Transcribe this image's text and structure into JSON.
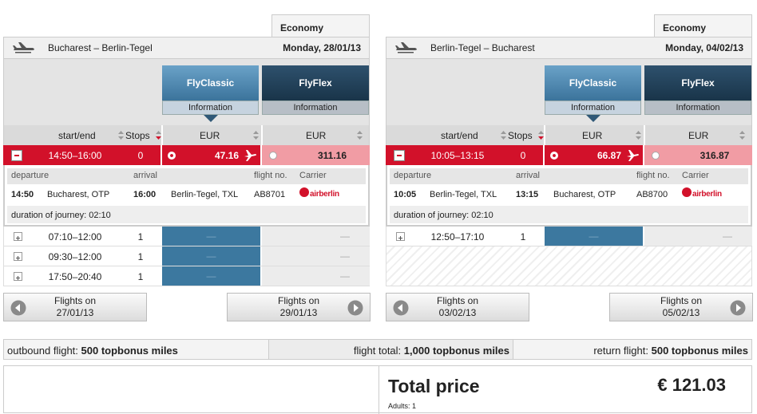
{
  "panels": [
    {
      "tab": "Economy",
      "route": "Bucharest – Berlin-Tegel",
      "date": "Monday, 28/01/13",
      "fares": [
        {
          "name": "FlyClassic",
          "info": "Information"
        },
        {
          "name": "FlyFlex",
          "info": "Information"
        }
      ],
      "columns": [
        "start/end",
        "Stops",
        "EUR",
        "EUR"
      ],
      "selected": {
        "time": "14:50–16:00",
        "stops": "0",
        "prices": [
          "47.16",
          "311.16"
        ]
      },
      "detail": {
        "headers": [
          "departure",
          "arrival",
          "flight no.",
          "Carrier"
        ],
        "dep_time": "14:50",
        "dep_place": "Bucharest, OTP",
        "arr_time": "16:00",
        "arr_place": "Berlin-Tegel, TXL",
        "flight_no": "AB8701",
        "carrier": "airberlin",
        "duration": "duration of journey: 02:10"
      },
      "flights": [
        {
          "time": "07:10–12:00",
          "stops": "1",
          "prices": [
            "—",
            "—"
          ]
        },
        {
          "time": "09:30–12:00",
          "stops": "1",
          "prices": [
            "—",
            "—"
          ]
        },
        {
          "time": "17:50–20:40",
          "stops": "1",
          "prices": [
            "—",
            "—"
          ]
        }
      ],
      "prev": {
        "label": "Flights on",
        "date": "27/01/13"
      },
      "next": {
        "label": "Flights on",
        "date": "29/01/13"
      }
    },
    {
      "tab": "Economy",
      "route": "Berlin-Tegel – Bucharest",
      "date": "Monday, 04/02/13",
      "fares": [
        {
          "name": "FlyClassic",
          "info": "Information"
        },
        {
          "name": "FlyFlex",
          "info": "Information"
        }
      ],
      "columns": [
        "start/end",
        "Stops",
        "EUR",
        "EUR"
      ],
      "selected": {
        "time": "10:05–13:15",
        "stops": "0",
        "prices": [
          "66.87",
          "316.87"
        ]
      },
      "detail": {
        "headers": [
          "departure",
          "arrival",
          "flight no.",
          "Carrier"
        ],
        "dep_time": "10:05",
        "dep_place": "Berlin-Tegel, TXL",
        "arr_time": "13:15",
        "arr_place": "Bucharest, OTP",
        "flight_no": "AB8700",
        "carrier": "airberlin",
        "duration": "duration of journey: 02:10"
      },
      "flights": [
        {
          "time": "12:50–17:10",
          "stops": "1",
          "prices": [
            "—",
            "—"
          ]
        }
      ],
      "prev": {
        "label": "Flights on",
        "date": "03/02/13"
      },
      "next": {
        "label": "Flights on",
        "date": "05/02/13"
      }
    }
  ],
  "miles": [
    {
      "label": "outbound flight:",
      "value": "500 topbonus miles"
    },
    {
      "label": "flight total:",
      "value": "1,000 topbonus miles"
    },
    {
      "label": "return flight:",
      "value": "500 topbonus miles"
    }
  ],
  "total": {
    "label": "Total price",
    "value": "€ 121.03",
    "adults": "Adults: 1"
  }
}
